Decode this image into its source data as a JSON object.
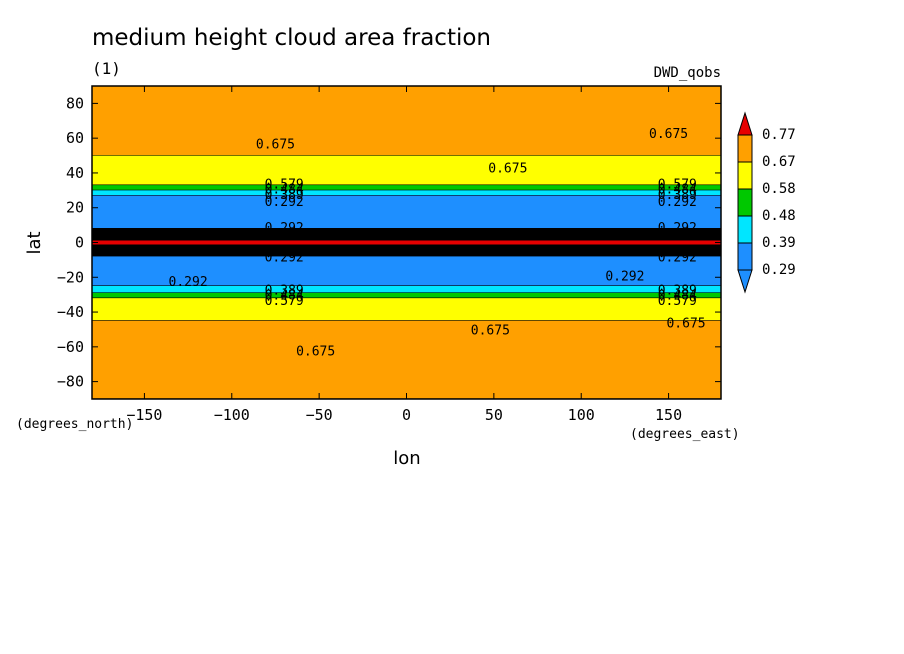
{
  "chart_data": {
    "type": "contour",
    "title": "medium height cloud area fraction",
    "subtitle": "(1)",
    "source": "DWD_qobs",
    "xlabel": "lon",
    "ylabel": "lat",
    "x_units": "(degrees_east)",
    "y_units": "(degrees_north)",
    "xlim": [
      -180,
      180
    ],
    "ylim": [
      -90,
      90
    ],
    "x_ticks": [
      -150,
      -100,
      -50,
      0,
      50,
      100,
      150
    ],
    "y_ticks": [
      80,
      60,
      40,
      20,
      0,
      -20,
      -40,
      -60,
      -80
    ],
    "colorbar": {
      "levels": [
        0.29,
        0.39,
        0.48,
        0.58,
        0.67,
        0.77
      ],
      "labels": [
        "0.77",
        "0.67",
        "0.58",
        "0.48",
        "0.39",
        "0.29"
      ],
      "colors": [
        "#1e8fff",
        "#00e6ff",
        "#00c800",
        "#ffff00",
        "#ffa000",
        "#e60000"
      ]
    },
    "bands": [
      {
        "lat_from": 90,
        "lat_to": 50,
        "color": "#ffa000",
        "level": "0.675+"
      },
      {
        "lat_from": 50,
        "lat_to": 33,
        "color": "#ffff00",
        "level": "0.58-0.675"
      },
      {
        "lat_from": 33,
        "lat_to": 30,
        "color": "#00c800",
        "level": "0.48-0.58"
      },
      {
        "lat_from": 30,
        "lat_to": 27,
        "color": "#00e6ff",
        "level": "0.39-0.48"
      },
      {
        "lat_from": 27,
        "lat_to": 8,
        "color": "#1e8fff",
        "level": "0.29-0.39"
      },
      {
        "lat_from": 8,
        "lat_to": -8,
        "color": "#000000",
        "level": "<0.29"
      },
      {
        "lat_from": -8,
        "lat_to": -25,
        "color": "#1e8fff",
        "level": "0.29-0.39"
      },
      {
        "lat_from": -25,
        "lat_to": -29,
        "color": "#00e6ff",
        "level": "0.39-0.48"
      },
      {
        "lat_from": -29,
        "lat_to": -32,
        "color": "#00c800",
        "level": "0.48-0.58"
      },
      {
        "lat_from": -32,
        "lat_to": -45,
        "color": "#ffff00",
        "level": "0.58-0.675"
      },
      {
        "lat_from": -45,
        "lat_to": -90,
        "color": "#ffa000",
        "level": "0.675+"
      }
    ],
    "equator_line": {
      "lat": 0,
      "color": "#e60000"
    },
    "contour_labels": [
      {
        "text": "0.675",
        "lon": -75,
        "lat": 57
      },
      {
        "text": "0.675",
        "lon": 150,
        "lat": 63
      },
      {
        "text": "0.675",
        "lon": 58,
        "lat": 43
      },
      {
        "text": "0.579",
        "lon": -70,
        "lat": 34
      },
      {
        "text": "0.484",
        "lon": -70,
        "lat": 31
      },
      {
        "text": "0.389",
        "lon": -70,
        "lat": 28
      },
      {
        "text": "0.292",
        "lon": -70,
        "lat": 24
      },
      {
        "text": "0.579",
        "lon": 155,
        "lat": 34
      },
      {
        "text": "0.484",
        "lon": 155,
        "lat": 31
      },
      {
        "text": "0.389",
        "lon": 155,
        "lat": 28
      },
      {
        "text": "0.292",
        "lon": 155,
        "lat": 24
      },
      {
        "text": "0.292",
        "lon": -70,
        "lat": 9
      },
      {
        "text": "0.292",
        "lon": 155,
        "lat": 9
      },
      {
        "text": "0.292",
        "lon": -70,
        "lat": -8
      },
      {
        "text": "0.292",
        "lon": 155,
        "lat": -8
      },
      {
        "text": "0.292",
        "lon": -125,
        "lat": -22
      },
      {
        "text": "0.292",
        "lon": 125,
        "lat": -19
      },
      {
        "text": "0.389",
        "lon": -70,
        "lat": -27
      },
      {
        "text": "0.484",
        "lon": -70,
        "lat": -30
      },
      {
        "text": "0.579",
        "lon": -70,
        "lat": -33
      },
      {
        "text": "0.389",
        "lon": 155,
        "lat": -27
      },
      {
        "text": "0.484",
        "lon": 155,
        "lat": -30
      },
      {
        "text": "0.579",
        "lon": 155,
        "lat": -33
      },
      {
        "text": "0.675",
        "lon": 48,
        "lat": -50
      },
      {
        "text": "0.675",
        "lon": 160,
        "lat": -46
      },
      {
        "text": "0.675",
        "lon": -52,
        "lat": -62
      }
    ]
  }
}
